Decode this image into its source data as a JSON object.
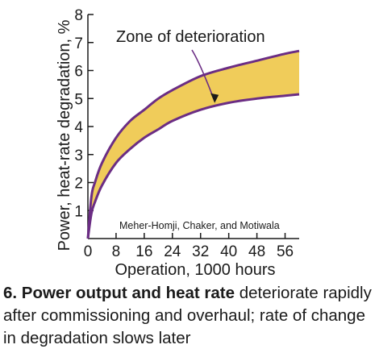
{
  "chart_data": {
    "type": "area",
    "xlabel": "Operation, 1000 hours",
    "ylabel": "Power, heat-rate degradation, %",
    "xlim": [
      0,
      60
    ],
    "ylim": [
      0,
      8
    ],
    "x_ticks": [
      0,
      8,
      16,
      24,
      32,
      40,
      48,
      56
    ],
    "y_ticks": [
      1,
      2,
      3,
      4,
      5,
      6,
      7,
      8
    ],
    "x": [
      0,
      1,
      2,
      4,
      8,
      12,
      16,
      20,
      24,
      32,
      40,
      48,
      56,
      60
    ],
    "series": [
      {
        "values": [
          0,
          1.5,
          2.0,
          2.7,
          3.6,
          4.2,
          4.6,
          5.0,
          5.3,
          5.8,
          6.1,
          6.35,
          6.6,
          6.7
        ]
      },
      {
        "values": [
          0,
          0.9,
          1.3,
          1.9,
          2.7,
          3.2,
          3.6,
          3.9,
          4.2,
          4.6,
          4.85,
          5.0,
          5.1,
          5.15
        ]
      }
    ],
    "annotations": [
      {
        "text": "Zone of deterioration",
        "x": 36,
        "y": 4.9
      },
      {
        "text": "Meher-Homji, Chaker, and Motiwala"
      }
    ],
    "colors": {
      "band_fill": "#f0cc5a",
      "curve": "#6b2d84",
      "text": "#1a1a1a"
    },
    "grid": false,
    "legend": "none"
  },
  "caption": {
    "lead": "6. Power output and heat rate",
    "rest": " deteriorate rapidly after commissioning and overhaul; rate of change in degradation slows later"
  }
}
